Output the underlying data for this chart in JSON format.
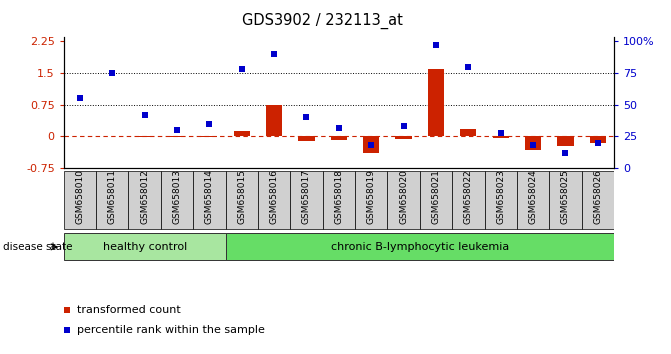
{
  "title": "GDS3902 / 232113_at",
  "samples": [
    "GSM658010",
    "GSM658011",
    "GSM658012",
    "GSM658013",
    "GSM658014",
    "GSM658015",
    "GSM658016",
    "GSM658017",
    "GSM658018",
    "GSM658019",
    "GSM658020",
    "GSM658021",
    "GSM658022",
    "GSM658023",
    "GSM658024",
    "GSM658025",
    "GSM658026"
  ],
  "transformed_count": [
    0.02,
    0.01,
    -0.02,
    -0.02,
    -0.02,
    0.12,
    0.75,
    -0.1,
    -0.08,
    -0.38,
    -0.05,
    1.6,
    0.18,
    -0.03,
    -0.32,
    -0.22,
    -0.15
  ],
  "percentile_rank": [
    55,
    75,
    42,
    30,
    35,
    78,
    90,
    40,
    32,
    18,
    33,
    97,
    80,
    28,
    18,
    12,
    20
  ],
  "group_labels": [
    "healthy control",
    "chronic B-lymphocytic leukemia"
  ],
  "group_ranges": [
    [
      0,
      5
    ],
    [
      5,
      17
    ]
  ],
  "group_colors_light": [
    "#a8e6a0",
    "#66dd66"
  ],
  "bar_color_red": "#cc2200",
  "dot_color_blue": "#0000cc",
  "hline_color": "#cc2200",
  "left_yticks": [
    -0.75,
    0,
    0.75,
    1.5,
    2.25
  ],
  "right_yticks": [
    0,
    25,
    50,
    75,
    100
  ],
  "ylim_left": [
    -0.75,
    2.35
  ],
  "background_color": "#ffffff",
  "tick_bg_color": "#d0d0d0",
  "label_transformed": "transformed count",
  "label_percentile": "percentile rank within the sample"
}
